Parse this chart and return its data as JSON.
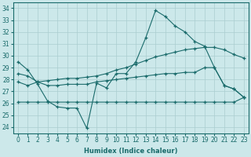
{
  "xlabel": "Humidex (Indice chaleur)",
  "ylabel": "",
  "background_color": "#cce8ea",
  "grid_color": "#aacdd0",
  "line_color": "#1a6b6b",
  "xlim": [
    -0.5,
    23.5
  ],
  "ylim": [
    23.5,
    34.5
  ],
  "yticks": [
    24,
    25,
    26,
    27,
    28,
    29,
    30,
    31,
    32,
    33,
    34
  ],
  "xticks": [
    0,
    1,
    2,
    3,
    4,
    5,
    6,
    7,
    8,
    9,
    10,
    11,
    12,
    13,
    14,
    15,
    16,
    17,
    18,
    19,
    20,
    21,
    22,
    23
  ],
  "series": [
    {
      "x": [
        0,
        1,
        2,
        3,
        4,
        5,
        6,
        7,
        8,
        9,
        10,
        11,
        12,
        13,
        14,
        15,
        16,
        17,
        18,
        19,
        20,
        21,
        22,
        23
      ],
      "y": [
        29.5,
        28.8,
        27.6,
        26.2,
        25.7,
        25.6,
        25.6,
        23.9,
        27.7,
        27.3,
        28.5,
        28.5,
        29.5,
        31.5,
        33.8,
        33.3,
        32.5,
        32.0,
        31.2,
        30.8,
        29.0,
        27.5,
        27.2,
        26.5
      ]
    },
    {
      "x": [
        0,
        1,
        2,
        3,
        4,
        5,
        6,
        7,
        8,
        9,
        10,
        11,
        12,
        13,
        14,
        15,
        16,
        17,
        18,
        19,
        20,
        21,
        22,
        23
      ],
      "y": [
        28.5,
        28.3,
        27.8,
        27.9,
        28.0,
        28.1,
        28.1,
        28.2,
        28.3,
        28.5,
        28.8,
        29.0,
        29.3,
        29.6,
        29.9,
        30.1,
        30.3,
        30.5,
        30.6,
        30.7,
        30.7,
        30.5,
        30.1,
        29.8
      ]
    },
    {
      "x": [
        0,
        1,
        2,
        3,
        4,
        5,
        6,
        7,
        8,
        9,
        10,
        11,
        12,
        13,
        14,
        15,
        16,
        17,
        18,
        19,
        20,
        21,
        22,
        23
      ],
      "y": [
        27.8,
        27.5,
        27.8,
        27.5,
        27.5,
        27.6,
        27.6,
        27.6,
        27.8,
        27.9,
        28.0,
        28.1,
        28.2,
        28.3,
        28.4,
        28.5,
        28.5,
        28.6,
        28.6,
        29.0,
        29.0,
        27.5,
        27.2,
        26.5
      ]
    },
    {
      "x": [
        0,
        1,
        2,
        3,
        4,
        5,
        6,
        7,
        8,
        9,
        10,
        11,
        12,
        13,
        14,
        15,
        16,
        17,
        18,
        19,
        20,
        21,
        22,
        23
      ],
      "y": [
        26.1,
        26.1,
        26.1,
        26.1,
        26.1,
        26.1,
        26.1,
        26.1,
        26.1,
        26.1,
        26.1,
        26.1,
        26.1,
        26.1,
        26.1,
        26.1,
        26.1,
        26.1,
        26.1,
        26.1,
        26.1,
        26.1,
        26.1,
        26.5
      ]
    }
  ]
}
